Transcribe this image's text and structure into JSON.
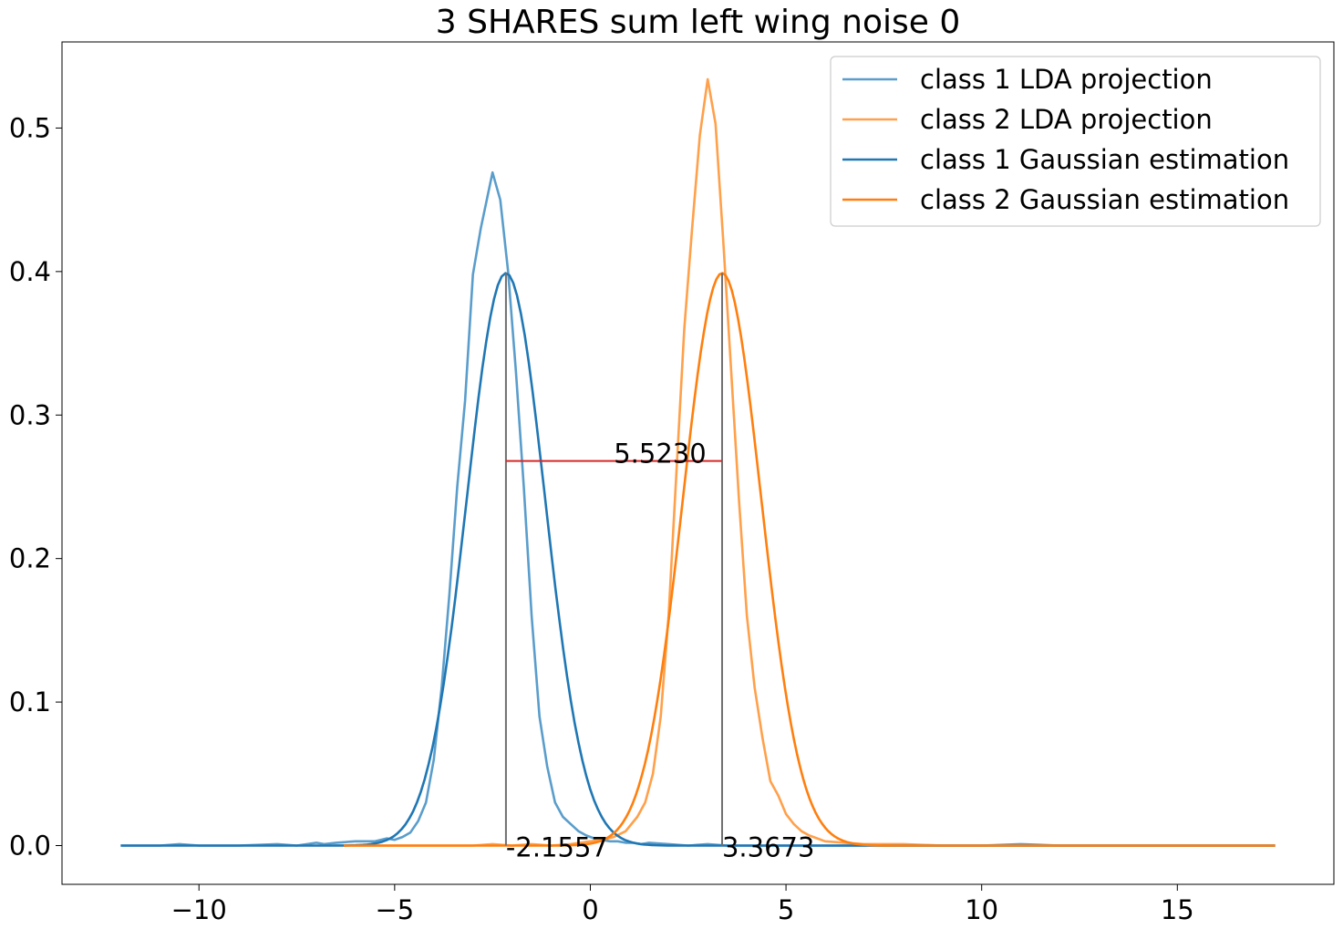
{
  "chart_data": {
    "type": "line",
    "title": "3 SHARES sum left wing noise 0",
    "xlabel": "",
    "ylabel": "",
    "xlim": [
      -13.5,
      19.0
    ],
    "ylim": [
      -0.027,
      0.56
    ],
    "xticks": [
      -10,
      -5,
      0,
      5,
      10,
      15
    ],
    "xtick_labels": [
      "−10",
      "−5",
      "0",
      "5",
      "10",
      "15"
    ],
    "yticks": [
      0.0,
      0.1,
      0.2,
      0.3,
      0.4,
      0.5
    ],
    "ytick_labels": [
      "0.0",
      "0.1",
      "0.2",
      "0.3",
      "0.4",
      "0.5"
    ],
    "grid": false,
    "legend_position": "top-right",
    "series": [
      {
        "name": "class 1 LDA projection",
        "color": "#5a9dcb",
        "x": [
          -12.0,
          -11.0,
          -10.5,
          -10.0,
          -9.0,
          -8.0,
          -7.5,
          -7.0,
          -6.8,
          -6.5,
          -6.0,
          -5.5,
          -5.2,
          -5.0,
          -4.8,
          -4.6,
          -4.4,
          -4.2,
          -4.0,
          -3.8,
          -3.6,
          -3.4,
          -3.2,
          -3.0,
          -2.8,
          -2.5,
          -2.3,
          -2.1,
          -1.9,
          -1.7,
          -1.5,
          -1.3,
          -1.1,
          -0.9,
          -0.7,
          -0.5,
          -0.3,
          -0.1,
          0.1,
          0.3,
          0.5,
          0.7,
          0.9,
          1.1,
          1.3,
          1.5,
          2.0,
          2.5,
          3.0,
          3.5,
          4.0,
          5.0,
          6.0,
          7.0,
          8.0,
          9.0,
          10.0,
          11.0,
          12.0,
          13.0,
          14.0,
          15.0,
          16.0,
          17.5
        ],
        "y": [
          0.0,
          0.0,
          0.001,
          0.0,
          0.0,
          0.001,
          0.0,
          0.002,
          0.001,
          0.002,
          0.003,
          0.003,
          0.005,
          0.004,
          0.006,
          0.009,
          0.017,
          0.03,
          0.06,
          0.11,
          0.175,
          0.25,
          0.31,
          0.398,
          0.43,
          0.469,
          0.45,
          0.4,
          0.33,
          0.25,
          0.16,
          0.09,
          0.055,
          0.03,
          0.02,
          0.015,
          0.01,
          0.007,
          0.005,
          0.004,
          0.003,
          0.003,
          0.002,
          0.002,
          0.001,
          0.002,
          0.001,
          0.0,
          0.001,
          0.0,
          0.0,
          0.0,
          0.0,
          0.0,
          0.0,
          0.0,
          0.0,
          0.001,
          0.0,
          0.0,
          0.0,
          0.0,
          0.0,
          0.0
        ]
      },
      {
        "name": "class 2 LDA projection",
        "color": "#ffa04a",
        "x": [
          -6.3,
          -5.0,
          -4.0,
          -3.0,
          -2.5,
          -2.0,
          -1.5,
          -1.0,
          -0.5,
          0.0,
          0.3,
          0.6,
          0.9,
          1.2,
          1.4,
          1.6,
          1.8,
          2.0,
          2.2,
          2.4,
          2.6,
          2.8,
          3.0,
          3.2,
          3.4,
          3.6,
          3.8,
          4.0,
          4.2,
          4.4,
          4.6,
          4.8,
          5.0,
          5.2,
          5.4,
          5.6,
          5.8,
          6.0,
          6.5,
          7.0,
          8.0,
          9.0,
          10.0,
          11.0,
          12.0,
          13.0,
          14.0,
          15.0,
          16.0,
          17.5
        ],
        "y": [
          0.0,
          0.0,
          0.0,
          0.0,
          0.001,
          0.0,
          0.001,
          0.0,
          0.001,
          0.003,
          0.004,
          0.006,
          0.01,
          0.02,
          0.03,
          0.05,
          0.09,
          0.16,
          0.26,
          0.36,
          0.43,
          0.495,
          0.534,
          0.503,
          0.42,
          0.33,
          0.24,
          0.16,
          0.11,
          0.075,
          0.045,
          0.035,
          0.022,
          0.015,
          0.01,
          0.007,
          0.005,
          0.003,
          0.002,
          0.001,
          0.001,
          0.0,
          0.0,
          0.0,
          0.0,
          0.0,
          0.0,
          0.0,
          0.0,
          0.0
        ]
      },
      {
        "name": "class 1 Gaussian estimation",
        "color": "#1f77b4",
        "gaussian": {
          "mean": -2.1557,
          "sigma": 1.0,
          "xmin": -12.0,
          "xmax": 17.5
        }
      },
      {
        "name": "class 2 Gaussian estimation",
        "color": "#ff7f0e",
        "gaussian": {
          "mean": 3.3673,
          "sigma": 1.0,
          "xmin": -6.3,
          "xmax": 17.5
        }
      }
    ],
    "annotations": [
      {
        "text": "-2.1557",
        "x": -2.1557,
        "y": 0.0,
        "kind": "mean-label"
      },
      {
        "text": "3.3673",
        "x": 3.3673,
        "y": 0.0,
        "kind": "mean-label"
      },
      {
        "text": "5.5230",
        "x": 0.6,
        "y": 0.268,
        "kind": "distance-label"
      }
    ],
    "reference_lines": [
      {
        "kind": "vertical",
        "x": -2.1557,
        "y0": 0.0,
        "y1": 0.399,
        "color": "#707070"
      },
      {
        "kind": "vertical",
        "x": 3.3673,
        "y0": 0.0,
        "y1": 0.399,
        "color": "#707070"
      },
      {
        "kind": "horizontal",
        "x0": -2.1557,
        "x1": 3.3673,
        "y": 0.268,
        "color": "#d62728"
      }
    ]
  }
}
